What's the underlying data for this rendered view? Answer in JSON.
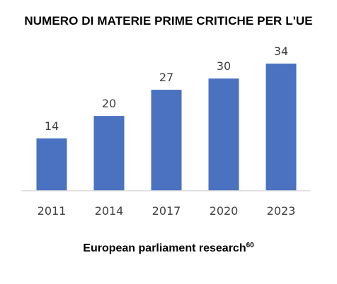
{
  "chart_data": {
    "type": "bar",
    "title": "NUMERO DI MATERIE PRIME CRITICHE PER L'UE",
    "categories": [
      "2011",
      "2014",
      "2017",
      "2020",
      "2023"
    ],
    "values": [
      14,
      20,
      27,
      30,
      34
    ],
    "xlabel": "",
    "ylabel": "",
    "ylim": [
      0,
      34
    ],
    "grid": false,
    "legend": "none",
    "bar_color": "#4a72c0",
    "axis_color": "#d9d9d9",
    "label_color": "#404040"
  },
  "source": {
    "text": "European parliament research",
    "ref": "60"
  }
}
